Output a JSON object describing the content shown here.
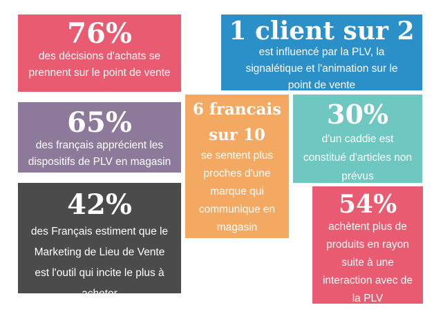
{
  "cards": [
    {
      "stat": "76%",
      "lines": [
        "des décisions d'achats se",
        "prennent sur le point de vente"
      ],
      "color": "#e95b70"
    },
    {
      "stat": "1 client sur 2",
      "lines": [
        "est influencé par la PLV, la",
        "signalétique et l'animation sur le",
        "point de vente"
      ],
      "color": "#2b8fc8"
    },
    {
      "stat": "65%",
      "lines": [
        "des français apprécient les",
        "dispositifs de PLV en magasin"
      ],
      "color": "#8d7a9b"
    },
    {
      "stat_lines": [
        "6 francais",
        "sur 10"
      ],
      "lines": [
        "se sentent plus",
        "proches d'une",
        "marque qui",
        "communique en",
        "magasin"
      ],
      "color": "#f4a962"
    },
    {
      "stat": "30%",
      "lines": [
        "d'un caddie est",
        "constitué d'articles non",
        "prévus"
      ],
      "color": "#6fc7c1"
    },
    {
      "stat": "42%",
      "lines": [
        "des Français estiment que le",
        "Marketing de Lieu de Vente",
        "est l'outil qui incite le plus à",
        "acheter"
      ],
      "color": "#4b4b4b"
    },
    {
      "stat": "54%",
      "lines": [
        "achètent plus de",
        "produits en rayon",
        "suite à une",
        "interaction avec de",
        "la PLV"
      ],
      "color": "#e95b70"
    }
  ]
}
